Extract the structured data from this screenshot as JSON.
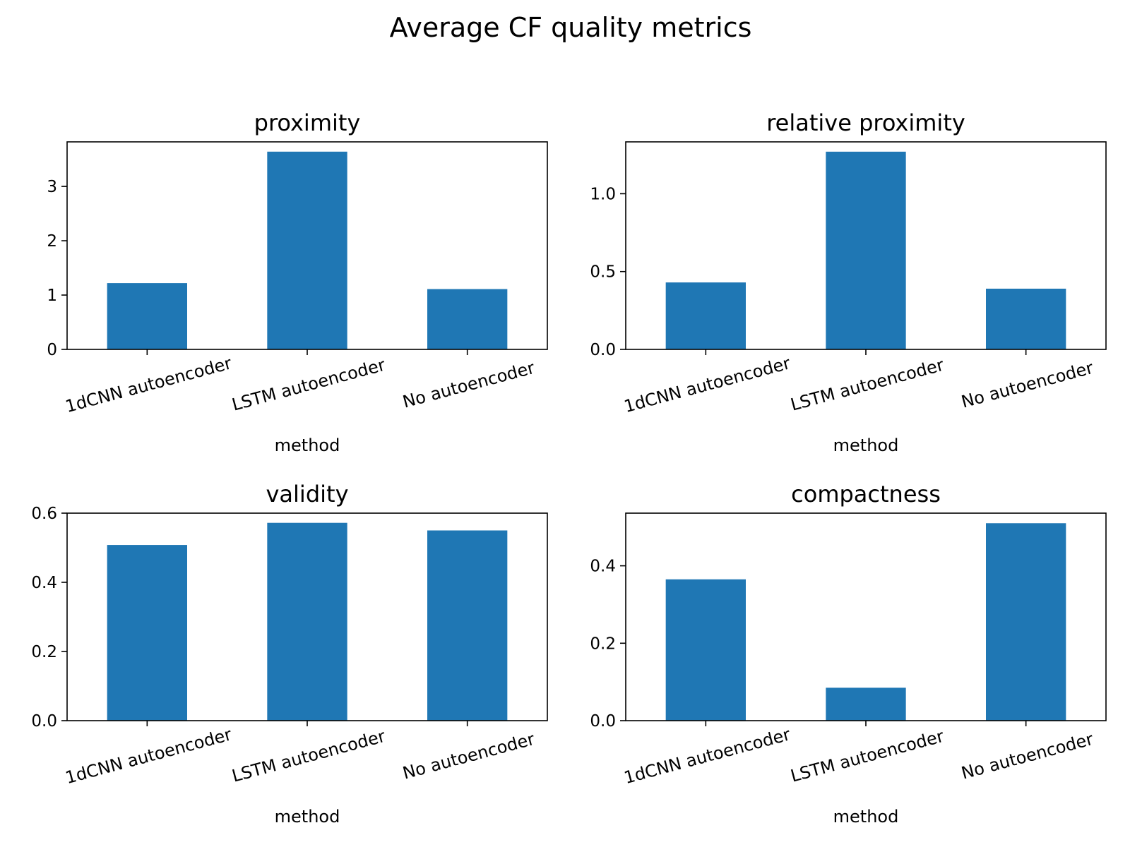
{
  "figure": {
    "suptitle": "Average CF quality metrics"
  },
  "chart_data": [
    {
      "type": "bar",
      "title": "proximity",
      "xlabel": "method",
      "ylabel": "",
      "categories": [
        "1dCNN autoencoder",
        "LSTM autoencoder",
        "No autoencoder"
      ],
      "values": [
        1.22,
        3.64,
        1.11
      ],
      "ylim": [
        0,
        3.82
      ],
      "yticks": [
        0,
        1,
        2,
        3
      ],
      "ytick_labels": [
        "0",
        "1",
        "2",
        "3"
      ],
      "color": "#1f77b4",
      "grid": false,
      "legend": false
    },
    {
      "type": "bar",
      "title": "relative proximity",
      "xlabel": "method",
      "ylabel": "",
      "categories": [
        "1dCNN autoencoder",
        "LSTM autoencoder",
        "No autoencoder"
      ],
      "values": [
        0.43,
        1.27,
        0.39
      ],
      "ylim": [
        0,
        1.333
      ],
      "yticks": [
        0,
        0.5,
        1.0
      ],
      "ytick_labels": [
        "0.0",
        "0.5",
        "1.0"
      ],
      "color": "#1f77b4",
      "grid": false,
      "legend": false
    },
    {
      "type": "bar",
      "title": "validity",
      "xlabel": "method",
      "ylabel": "",
      "categories": [
        "1dCNN autoencoder",
        "LSTM autoencoder",
        "No autoencoder"
      ],
      "values": [
        0.508,
        0.572,
        0.55
      ],
      "ylim": [
        0,
        0.6
      ],
      "yticks": [
        0,
        0.2,
        0.4,
        0.6
      ],
      "ytick_labels": [
        "0.0",
        "0.2",
        "0.4",
        "0.6"
      ],
      "color": "#1f77b4",
      "grid": false,
      "legend": false
    },
    {
      "type": "bar",
      "title": "compactness",
      "xlabel": "method",
      "ylabel": "",
      "categories": [
        "1dCNN autoencoder",
        "LSTM autoencoder",
        "No autoencoder"
      ],
      "values": [
        0.365,
        0.085,
        0.51
      ],
      "ylim": [
        0,
        0.536
      ],
      "yticks": [
        0,
        0.2,
        0.4
      ],
      "ytick_labels": [
        "0.0",
        "0.2",
        "0.4"
      ],
      "color": "#1f77b4",
      "grid": false,
      "legend": false
    }
  ]
}
